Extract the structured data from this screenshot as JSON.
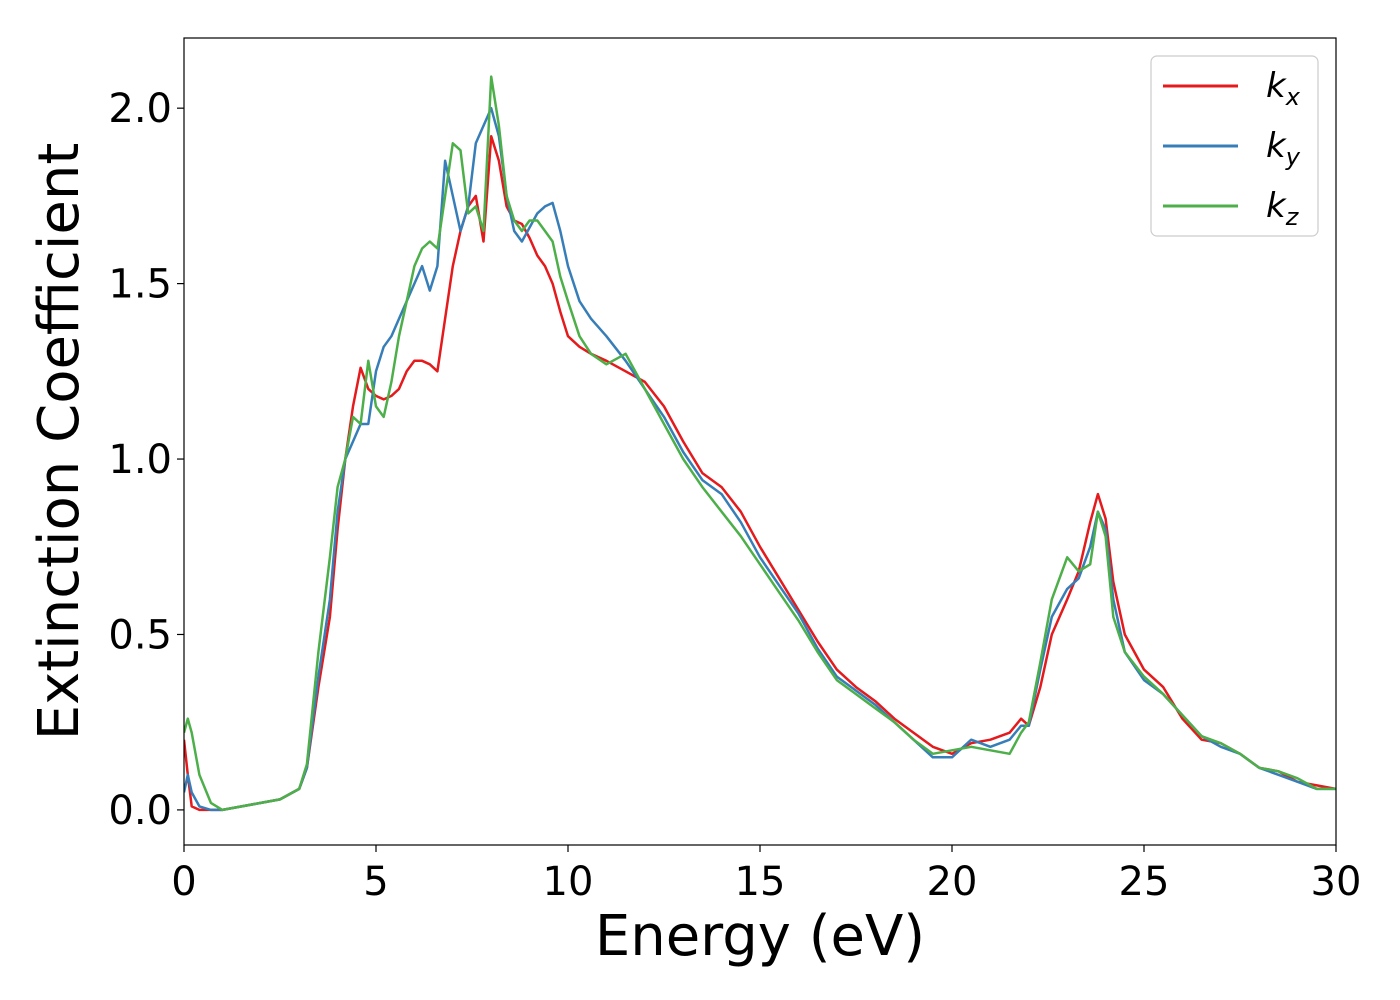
{
  "chart_data": {
    "type": "line",
    "xlabel": "Energy (eV)",
    "ylabel": "Extinction Coefficient",
    "xlim": [
      0,
      30
    ],
    "ylim": [
      -0.1,
      2.2
    ],
    "xticks": [
      0,
      5,
      10,
      15,
      20,
      25,
      30
    ],
    "xtick_labels": [
      "0",
      "5",
      "10",
      "15",
      "20",
      "25",
      "30"
    ],
    "yticks": [
      0.0,
      0.5,
      1.0,
      1.5,
      2.0
    ],
    "ytick_labels": [
      "0.0",
      "0.5",
      "1.0",
      "1.5",
      "2.0"
    ],
    "grid": false,
    "legend_position": "top-right",
    "series": [
      {
        "name": "k_x",
        "label_base": "k",
        "label_sub": "x",
        "color": "#e41a1c",
        "x": [
          0,
          0.1,
          0.2,
          0.4,
          0.7,
          1.0,
          1.5,
          2.0,
          2.5,
          3.0,
          3.2,
          3.5,
          3.8,
          4.0,
          4.2,
          4.4,
          4.6,
          4.8,
          5.0,
          5.2,
          5.4,
          5.6,
          5.8,
          6.0,
          6.2,
          6.4,
          6.6,
          6.8,
          7.0,
          7.2,
          7.4,
          7.6,
          7.8,
          8.0,
          8.2,
          8.4,
          8.6,
          8.8,
          9.0,
          9.2,
          9.4,
          9.6,
          9.8,
          10.0,
          10.3,
          10.6,
          11.0,
          11.5,
          12.0,
          12.5,
          13.0,
          13.5,
          14.0,
          14.5,
          15.0,
          15.5,
          16.0,
          16.5,
          17.0,
          17.5,
          18.0,
          18.5,
          19.0,
          19.5,
          20.0,
          20.5,
          21.0,
          21.5,
          21.8,
          22.0,
          22.3,
          22.6,
          23.0,
          23.3,
          23.6,
          23.8,
          24.0,
          24.2,
          24.5,
          25.0,
          25.5,
          26.0,
          26.5,
          27.0,
          27.5,
          28.0,
          28.5,
          29.0,
          29.5,
          30.0
        ],
        "y": [
          0.2,
          0.1,
          0.01,
          0.0,
          0.0,
          0.0,
          0.01,
          0.02,
          0.03,
          0.06,
          0.12,
          0.35,
          0.55,
          0.8,
          1.0,
          1.15,
          1.26,
          1.2,
          1.18,
          1.17,
          1.18,
          1.2,
          1.25,
          1.28,
          1.28,
          1.27,
          1.25,
          1.4,
          1.55,
          1.65,
          1.72,
          1.75,
          1.62,
          1.92,
          1.85,
          1.72,
          1.68,
          1.67,
          1.63,
          1.58,
          1.55,
          1.5,
          1.42,
          1.35,
          1.32,
          1.3,
          1.28,
          1.25,
          1.22,
          1.15,
          1.05,
          0.96,
          0.92,
          0.85,
          0.75,
          0.66,
          0.57,
          0.48,
          0.4,
          0.35,
          0.31,
          0.26,
          0.22,
          0.18,
          0.16,
          0.19,
          0.2,
          0.22,
          0.26,
          0.24,
          0.35,
          0.5,
          0.6,
          0.68,
          0.82,
          0.9,
          0.83,
          0.65,
          0.5,
          0.4,
          0.35,
          0.26,
          0.2,
          0.19,
          0.16,
          0.12,
          0.11,
          0.08,
          0.07,
          0.06
        ]
      },
      {
        "name": "k_y",
        "label_base": "k",
        "label_sub": "y",
        "color": "#377eb8",
        "x": [
          0,
          0.1,
          0.2,
          0.4,
          0.7,
          1.0,
          1.5,
          2.0,
          2.5,
          3.0,
          3.2,
          3.5,
          3.8,
          4.0,
          4.2,
          4.4,
          4.6,
          4.8,
          5.0,
          5.2,
          5.4,
          5.6,
          5.8,
          6.0,
          6.2,
          6.4,
          6.6,
          6.8,
          7.0,
          7.2,
          7.4,
          7.6,
          7.8,
          8.0,
          8.2,
          8.4,
          8.6,
          8.8,
          9.0,
          9.2,
          9.4,
          9.6,
          9.8,
          10.0,
          10.3,
          10.6,
          11.0,
          11.5,
          12.0,
          12.5,
          13.0,
          13.5,
          14.0,
          14.5,
          15.0,
          15.5,
          16.0,
          16.5,
          17.0,
          17.5,
          18.0,
          18.5,
          19.0,
          19.5,
          20.0,
          20.5,
          21.0,
          21.5,
          21.8,
          22.0,
          22.3,
          22.6,
          23.0,
          23.3,
          23.6,
          23.8,
          24.0,
          24.2,
          24.5,
          25.0,
          25.5,
          26.0,
          26.5,
          27.0,
          27.5,
          28.0,
          28.5,
          29.0,
          29.5,
          30.0
        ],
        "y": [
          0.05,
          0.1,
          0.05,
          0.01,
          0.0,
          0.0,
          0.01,
          0.02,
          0.03,
          0.06,
          0.12,
          0.38,
          0.6,
          0.85,
          1.0,
          1.05,
          1.1,
          1.1,
          1.25,
          1.32,
          1.35,
          1.4,
          1.45,
          1.5,
          1.55,
          1.48,
          1.55,
          1.85,
          1.75,
          1.65,
          1.72,
          1.9,
          1.95,
          2.0,
          1.92,
          1.75,
          1.65,
          1.62,
          1.66,
          1.7,
          1.72,
          1.73,
          1.65,
          1.55,
          1.45,
          1.4,
          1.35,
          1.28,
          1.2,
          1.12,
          1.02,
          0.94,
          0.9,
          0.82,
          0.72,
          0.64,
          0.56,
          0.46,
          0.38,
          0.34,
          0.3,
          0.25,
          0.2,
          0.15,
          0.15,
          0.2,
          0.18,
          0.2,
          0.24,
          0.24,
          0.4,
          0.55,
          0.63,
          0.66,
          0.75,
          0.85,
          0.8,
          0.6,
          0.45,
          0.37,
          0.33,
          0.27,
          0.21,
          0.18,
          0.16,
          0.12,
          0.1,
          0.08,
          0.06,
          0.06
        ]
      },
      {
        "name": "k_z",
        "label_base": "k",
        "label_sub": "z",
        "color": "#4daf4a",
        "x": [
          0,
          0.1,
          0.2,
          0.4,
          0.7,
          1.0,
          1.5,
          2.0,
          2.5,
          3.0,
          3.2,
          3.5,
          3.8,
          4.0,
          4.2,
          4.4,
          4.6,
          4.8,
          5.0,
          5.2,
          5.4,
          5.6,
          5.8,
          6.0,
          6.2,
          6.4,
          6.6,
          6.8,
          7.0,
          7.2,
          7.4,
          7.6,
          7.8,
          8.0,
          8.2,
          8.4,
          8.6,
          8.8,
          9.0,
          9.2,
          9.4,
          9.6,
          9.8,
          10.0,
          10.3,
          10.6,
          11.0,
          11.5,
          12.0,
          12.5,
          13.0,
          13.5,
          14.0,
          14.5,
          15.0,
          15.5,
          16.0,
          16.5,
          17.0,
          17.5,
          18.0,
          18.5,
          19.0,
          19.5,
          20.0,
          20.5,
          21.0,
          21.5,
          21.8,
          22.0,
          22.3,
          22.6,
          23.0,
          23.3,
          23.6,
          23.8,
          24.0,
          24.2,
          24.5,
          25.0,
          25.5,
          26.0,
          26.5,
          27.0,
          27.5,
          28.0,
          28.5,
          29.0,
          29.5,
          30.0
        ],
        "y": [
          0.22,
          0.26,
          0.22,
          0.1,
          0.02,
          0.0,
          0.01,
          0.02,
          0.03,
          0.06,
          0.13,
          0.45,
          0.72,
          0.92,
          1.0,
          1.12,
          1.1,
          1.28,
          1.15,
          1.12,
          1.22,
          1.35,
          1.45,
          1.55,
          1.6,
          1.62,
          1.6,
          1.75,
          1.9,
          1.88,
          1.7,
          1.72,
          1.65,
          2.09,
          1.95,
          1.75,
          1.68,
          1.65,
          1.68,
          1.68,
          1.65,
          1.62,
          1.52,
          1.45,
          1.35,
          1.3,
          1.27,
          1.3,
          1.2,
          1.1,
          1.0,
          0.92,
          0.85,
          0.78,
          0.7,
          0.62,
          0.54,
          0.45,
          0.37,
          0.33,
          0.29,
          0.25,
          0.2,
          0.16,
          0.17,
          0.18,
          0.17,
          0.16,
          0.22,
          0.25,
          0.42,
          0.6,
          0.72,
          0.68,
          0.7,
          0.85,
          0.78,
          0.55,
          0.45,
          0.38,
          0.33,
          0.27,
          0.21,
          0.19,
          0.16,
          0.12,
          0.11,
          0.09,
          0.06,
          0.06
        ]
      }
    ]
  }
}
